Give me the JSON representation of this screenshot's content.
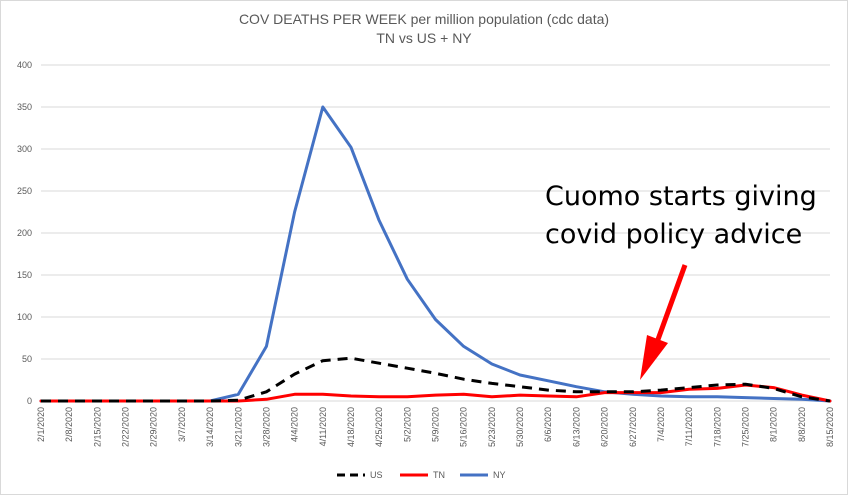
{
  "chart_data": {
    "type": "line",
    "title": "COV DEATHS PER WEEK per million population (cdc data)",
    "subtitle": "TN vs US + NY",
    "xlabel": "",
    "ylabel": "",
    "ylim": [
      0,
      400
    ],
    "yticks": [
      "0",
      "50",
      "100",
      "150",
      "200",
      "250",
      "300",
      "350",
      "400"
    ],
    "grid": true,
    "legend": "bottom",
    "categories": [
      "2/1/2020",
      "2/8/2020",
      "2/15/2020",
      "2/22/2020",
      "2/29/2020",
      "3/7/2020",
      "3/14/2020",
      "3/21/2020",
      "3/28/2020",
      "4/4/2020",
      "4/11/2020",
      "4/18/2020",
      "4/25/2020",
      "5/2/2020",
      "5/9/2020",
      "5/16/2020",
      "5/23/2020",
      "5/30/2020",
      "6/6/2020",
      "6/13/2020",
      "6/20/2020",
      "6/27/2020",
      "7/4/2020",
      "7/11/2020",
      "7/18/2020",
      "7/25/2020",
      "8/1/2020",
      "8/8/2020",
      "8/15/2020"
    ],
    "series": [
      {
        "name": "US",
        "color": "#000000",
        "dash": true,
        "values": [
          0,
          0,
          0,
          0,
          0,
          0,
          0,
          1,
          11,
          32,
          48,
          51,
          45,
          39,
          33,
          26,
          21,
          17,
          13,
          11,
          11,
          11,
          13,
          16,
          19,
          20,
          15,
          5,
          0
        ]
      },
      {
        "name": "TN",
        "color": "#ff0000",
        "dash": false,
        "values": [
          0,
          0,
          0,
          0,
          0,
          0,
          0,
          0,
          2,
          8,
          8,
          6,
          5,
          5,
          7,
          8,
          5,
          7,
          6,
          5,
          10,
          10,
          10,
          14,
          15,
          19,
          16,
          7,
          0
        ]
      },
      {
        "name": "NY",
        "color": "#4472c4",
        "dash": false,
        "values": [
          0,
          0,
          0,
          0,
          0,
          0,
          0,
          8,
          65,
          225,
          350,
          302,
          215,
          145,
          97,
          65,
          44,
          31,
          24,
          17,
          11,
          8,
          6,
          5,
          5,
          4,
          3,
          2,
          0
        ]
      }
    ],
    "annotation": {
      "line1": "Cuomo starts giving",
      "line2": "covid policy advice",
      "arrow_color": "#ff0000"
    }
  }
}
